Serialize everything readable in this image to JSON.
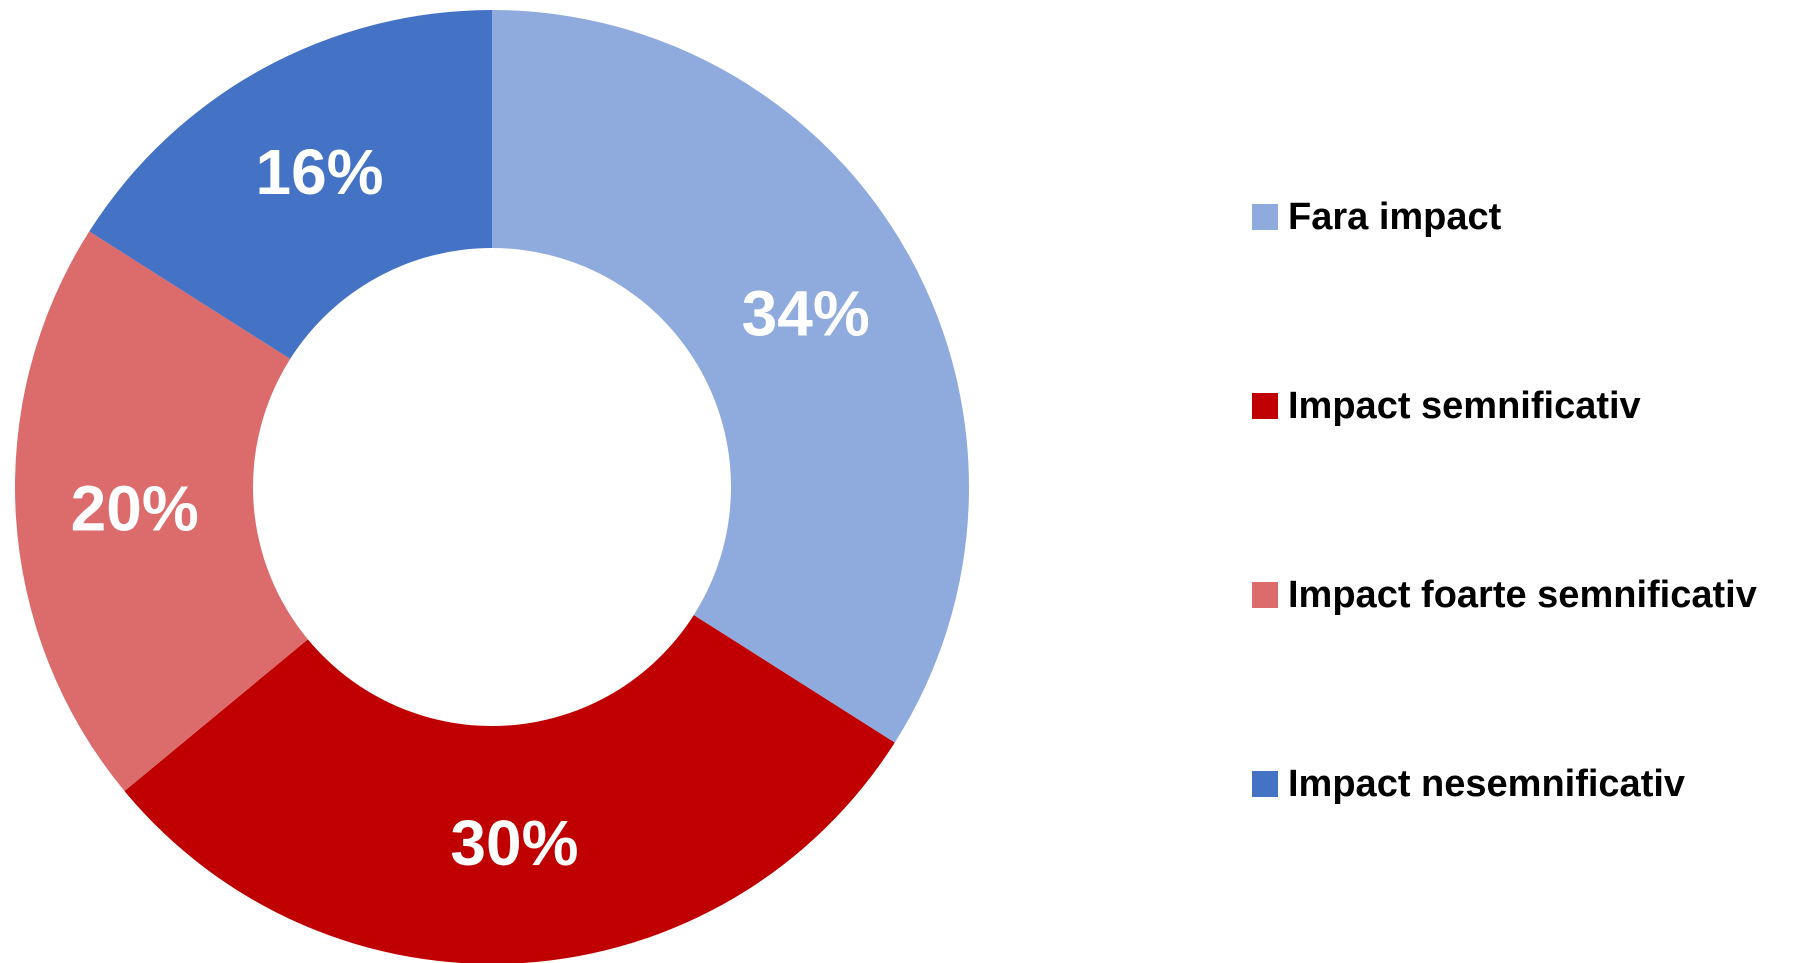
{
  "chart_data": {
    "type": "pie",
    "donut": true,
    "categories": [
      "Fara impact",
      "Impact semnificativ",
      "Impact foarte semnificativ",
      "Impact nesemnificativ"
    ],
    "values": [
      34,
      30,
      20,
      16
    ],
    "value_labels": [
      "34%",
      "30%",
      "20%",
      "16%"
    ],
    "colors": [
      "#8faadc",
      "#c00000",
      "#dc6b6b",
      "#4472c4"
    ],
    "legend": "right"
  }
}
